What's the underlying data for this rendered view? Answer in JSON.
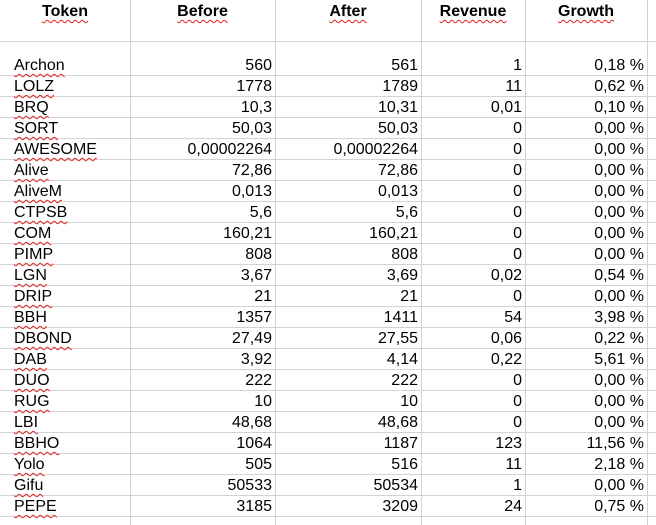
{
  "columns": {
    "token": "Token",
    "before": "Before",
    "after": "After",
    "revenue": "Revenue",
    "growth": "Growth"
  },
  "rows": [
    {
      "token": "Archon",
      "before": "560",
      "after": "561",
      "revenue": "1",
      "growth": "0,18 %"
    },
    {
      "token": "LOLZ",
      "before": "1778",
      "after": "1789",
      "revenue": "11",
      "growth": "0,62 %"
    },
    {
      "token": "BRQ",
      "before": "10,3",
      "after": "10,31",
      "revenue": "0,01",
      "growth": "0,10 %"
    },
    {
      "token": "SORT",
      "before": "50,03",
      "after": "50,03",
      "revenue": "0",
      "growth": "0,00 %"
    },
    {
      "token": "AWESOME",
      "before": "0,00002264",
      "after": "0,00002264",
      "revenue": "0",
      "growth": "0,00 %"
    },
    {
      "token": "Alive",
      "before": "72,86",
      "after": "72,86",
      "revenue": "0",
      "growth": "0,00 %"
    },
    {
      "token": "AliveM",
      "before": "0,013",
      "after": "0,013",
      "revenue": "0",
      "growth": "0,00 %"
    },
    {
      "token": "CTPSB",
      "before": "5,6",
      "after": "5,6",
      "revenue": "0",
      "growth": "0,00 %"
    },
    {
      "token": "COM",
      "before": "160,21",
      "after": "160,21",
      "revenue": "0",
      "growth": "0,00 %"
    },
    {
      "token": "PIMP",
      "before": "808",
      "after": "808",
      "revenue": "0",
      "growth": "0,00 %"
    },
    {
      "token": "LGN",
      "before": "3,67",
      "after": "3,69",
      "revenue": "0,02",
      "growth": "0,54 %"
    },
    {
      "token": "DRIP",
      "before": "21",
      "after": "21",
      "revenue": "0",
      "growth": "0,00 %"
    },
    {
      "token": "BBH",
      "before": "1357",
      "after": "1411",
      "revenue": "54",
      "growth": "3,98 %"
    },
    {
      "token": "DBOND",
      "before": "27,49",
      "after": "27,55",
      "revenue": "0,06",
      "growth": "0,22 %"
    },
    {
      "token": "DAB",
      "before": "3,92",
      "after": "4,14",
      "revenue": "0,22",
      "growth": "5,61 %"
    },
    {
      "token": "DUO",
      "before": "222",
      "after": "222",
      "revenue": "0",
      "growth": "0,00 %"
    },
    {
      "token": "RUG",
      "before": "10",
      "after": "10",
      "revenue": "0",
      "growth": "0,00 %"
    },
    {
      "token": "LBI",
      "before": "48,68",
      "after": "48,68",
      "revenue": "0",
      "growth": "0,00 %"
    },
    {
      "token": "BBHO",
      "before": "1064",
      "after": "1187",
      "revenue": "123",
      "growth": "11,56 %"
    },
    {
      "token": "Yolo",
      "before": "505",
      "after": "516",
      "revenue": "11",
      "growth": "2,18 %"
    },
    {
      "token": "Gifu",
      "before": "50533",
      "after": "50534",
      "revenue": "1",
      "growth": "0,00 %"
    },
    {
      "token": "PEPE",
      "before": "3185",
      "after": "3209",
      "revenue": "24",
      "growth": "0,75 %"
    }
  ],
  "colors": {
    "grid": "#d3d3d3",
    "spellcheck_underline": "#e02020",
    "text": "#000000"
  }
}
